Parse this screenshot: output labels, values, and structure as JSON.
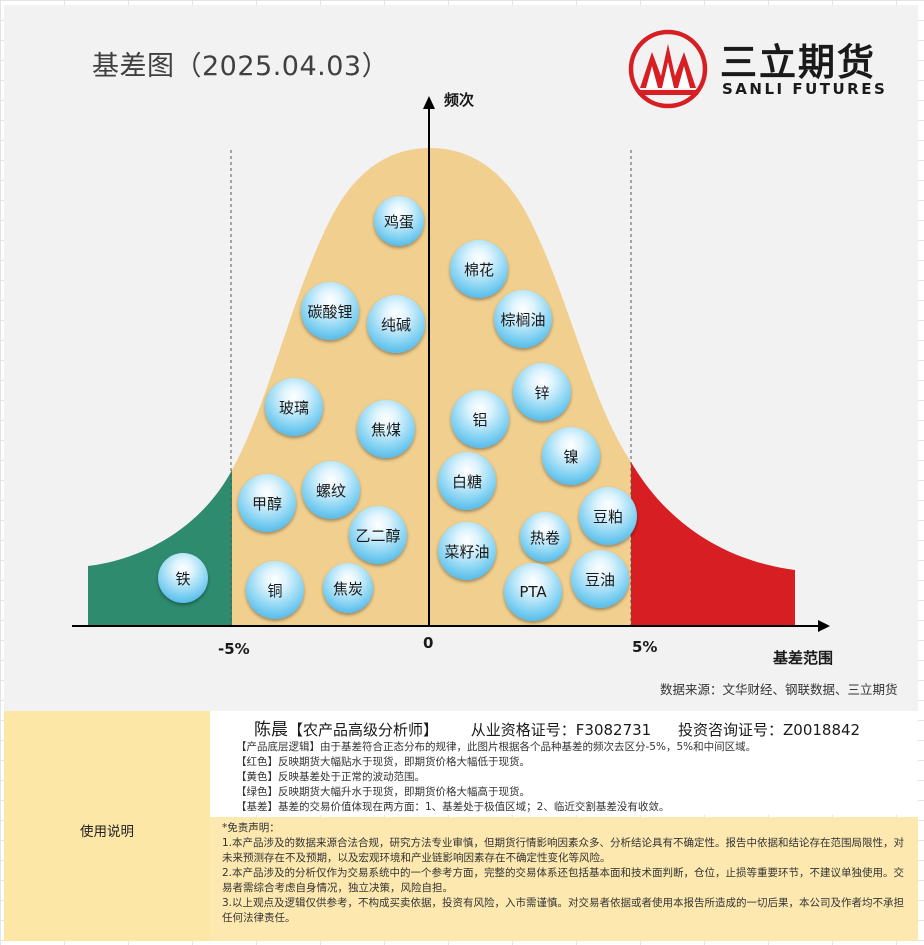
{
  "title": "基差图（2025.04.03）",
  "logo": {
    "cn": "三立期货",
    "en": "SANLI FUTURES"
  },
  "axes": {
    "y_label": "频次",
    "x_label": "基差范围",
    "tick_neg": "-5%",
    "tick_zero": "0",
    "tick_pos": "5%"
  },
  "colors": {
    "green": "#2e8b6e",
    "yellow": "#f0cf8f",
    "red": "#d71e22",
    "bubble": "#5bc0eb"
  },
  "bubbles": [
    "鸡蛋",
    "棉花",
    "碳酸锂",
    "纯碱",
    "棕榈油",
    "锌",
    "玻璃",
    "焦煤",
    "铝",
    "镍",
    "白糖",
    "甲醇",
    "螺纹",
    "豆粕",
    "乙二醇",
    "热卷",
    "菜籽油",
    "铁",
    "铜",
    "焦炭",
    "PTA",
    "豆油"
  ],
  "source": "数据来源：文华财经、钢联数据、三立期货",
  "panel": {
    "usage": "使用说明",
    "analyst_name": "陈晨",
    "analyst_title": "【农产品高级分析师】",
    "license": "从业资格证号：F3082731",
    "consult": "投资咨询证号：Z0018842",
    "desc1": "【产品底层逻辑】由于基差符合正态分布的规律，此图片根据各个品种基差的频次去区分-5%，5%和中间区域。",
    "desc2": "【红色】反映期货大幅贴水于现货，即期货价格大幅低于现货。",
    "desc3": "【黄色】反映基差处于正常的波动范围。",
    "desc4": "【绿色】反映期货大幅升水于现货，即期货价格大幅高于现货。",
    "desc5": "【基差】基差的交易价值体现在两方面：1、基差处于极值区域；2、临近交割基差没有收敛。",
    "disclaimer_title": "*免责声明：",
    "disc1": "1.本产品涉及的数据来源合法合规，研究方法专业审慎，但期货行情影响因素众多、分析结论具有不确定性。报告中依据和结论存在范围局限性，对未来预测存在不及预期，以及宏观环境和产业链影响因素存在不确定性变化等风险。",
    "disc2": "2.本产品涉及的分析仅作为交易系统中的一个参考方面，完整的交易体系还包括基本面和技术面判断，仓位，止损等重要环节，不建议单独使用。交易者需综合考虑自身情况，独立决策，风险自担。",
    "disc3": "3.以上观点及逻辑仅供参考，不构成买卖依据，投资有风险，入市需谨慎。对交易者依据或者使用本报告所造成的一切后果，本公司及作者均不承担任何法律责任。"
  }
}
